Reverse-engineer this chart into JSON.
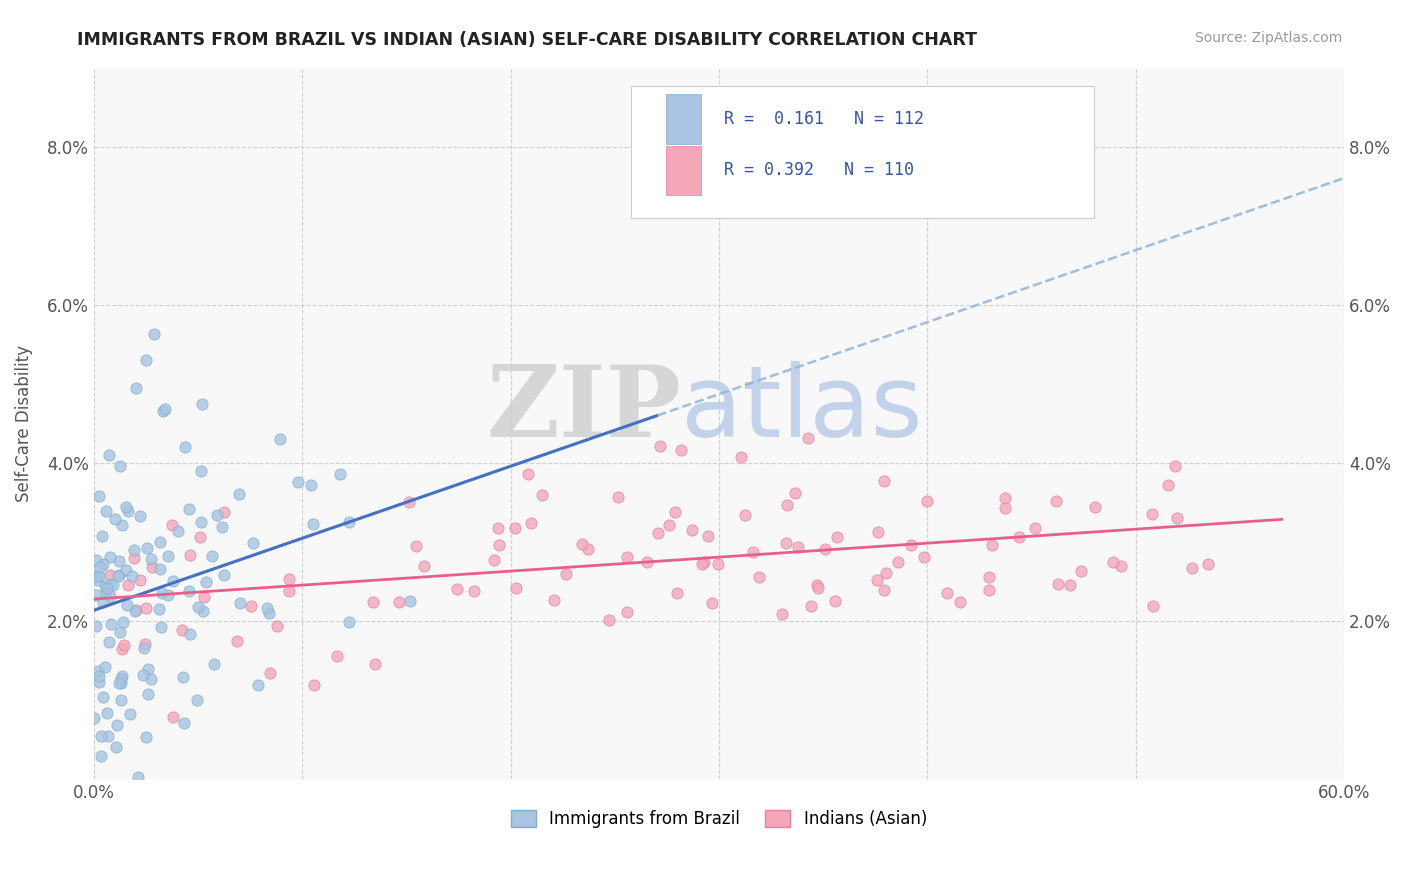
{
  "title": "IMMIGRANTS FROM BRAZIL VS INDIAN (ASIAN) SELF-CARE DISABILITY CORRELATION CHART",
  "source_text": "Source: ZipAtlas.com",
  "ylabel": "Self-Care Disability",
  "xlim": [
    0.0,
    0.6
  ],
  "ylim": [
    0.0,
    0.09
  ],
  "xticks": [
    0.0,
    0.1,
    0.2,
    0.3,
    0.4,
    0.5,
    0.6
  ],
  "xticklabels": [
    "0.0%",
    "",
    "",
    "",
    "",
    "",
    "60.0%"
  ],
  "yticks": [
    0.0,
    0.02,
    0.04,
    0.06,
    0.08
  ],
  "yticklabels": [
    "",
    "2.0%",
    "4.0%",
    "6.0%",
    "8.0%"
  ],
  "brazil_color": "#a8c4e0",
  "brazil_edge": "#7bafd4",
  "india_color": "#f4a7b9",
  "india_edge": "#e87fa0",
  "brazil_line_color": "#4472c4",
  "india_line_color": "#e8608a",
  "dashed_line_color": "#90b4d8",
  "legend_label1": "Immigrants from Brazil",
  "legend_label2": "Indians (Asian)",
  "watermark_zip": "ZIP",
  "watermark_atlas": "atlas",
  "watermark_zip_color": "#d0d0d0",
  "watermark_atlas_color": "#b8cce8",
  "brazil_R": 0.161,
  "brazil_N": 112,
  "india_R": 0.392,
  "india_N": 110,
  "background_color": "#ffffff",
  "plot_bg_color": "#f8f8f8"
}
